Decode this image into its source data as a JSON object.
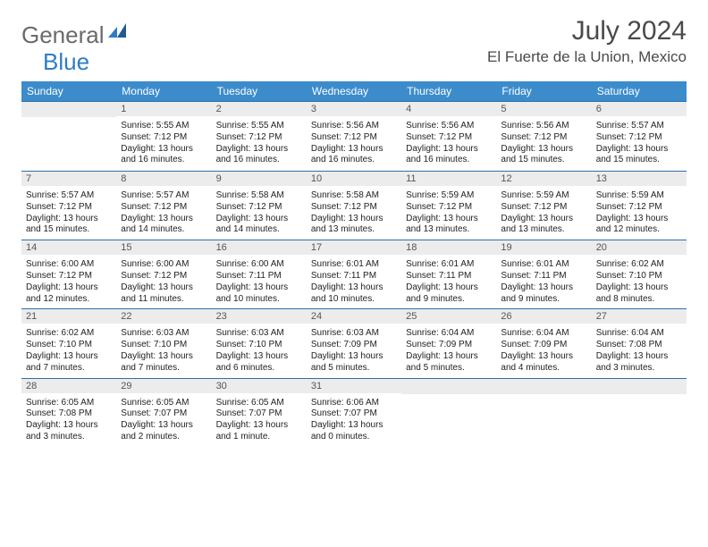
{
  "brand": {
    "part1": "General",
    "part2": "Blue"
  },
  "title": "July 2024",
  "location": "El Fuerte de la Union, Mexico",
  "colors": {
    "header_bg": "#3c8ccc",
    "header_text": "#ffffff",
    "border": "#2f6fa8",
    "daynum_bg": "#ececec",
    "daynum_text": "#555555",
    "body_text": "#222222",
    "brand_gray": "#6a6a6a",
    "brand_blue": "#2f7dc4"
  },
  "weekdays": [
    "Sunday",
    "Monday",
    "Tuesday",
    "Wednesday",
    "Thursday",
    "Friday",
    "Saturday"
  ],
  "weeks": [
    [
      {
        "day": "",
        "sunrise": "",
        "sunset": "",
        "daylight": ""
      },
      {
        "day": "1",
        "sunrise": "Sunrise: 5:55 AM",
        "sunset": "Sunset: 7:12 PM",
        "daylight": "Daylight: 13 hours and 16 minutes."
      },
      {
        "day": "2",
        "sunrise": "Sunrise: 5:55 AM",
        "sunset": "Sunset: 7:12 PM",
        "daylight": "Daylight: 13 hours and 16 minutes."
      },
      {
        "day": "3",
        "sunrise": "Sunrise: 5:56 AM",
        "sunset": "Sunset: 7:12 PM",
        "daylight": "Daylight: 13 hours and 16 minutes."
      },
      {
        "day": "4",
        "sunrise": "Sunrise: 5:56 AM",
        "sunset": "Sunset: 7:12 PM",
        "daylight": "Daylight: 13 hours and 16 minutes."
      },
      {
        "day": "5",
        "sunrise": "Sunrise: 5:56 AM",
        "sunset": "Sunset: 7:12 PM",
        "daylight": "Daylight: 13 hours and 15 minutes."
      },
      {
        "day": "6",
        "sunrise": "Sunrise: 5:57 AM",
        "sunset": "Sunset: 7:12 PM",
        "daylight": "Daylight: 13 hours and 15 minutes."
      }
    ],
    [
      {
        "day": "7",
        "sunrise": "Sunrise: 5:57 AM",
        "sunset": "Sunset: 7:12 PM",
        "daylight": "Daylight: 13 hours and 15 minutes."
      },
      {
        "day": "8",
        "sunrise": "Sunrise: 5:57 AM",
        "sunset": "Sunset: 7:12 PM",
        "daylight": "Daylight: 13 hours and 14 minutes."
      },
      {
        "day": "9",
        "sunrise": "Sunrise: 5:58 AM",
        "sunset": "Sunset: 7:12 PM",
        "daylight": "Daylight: 13 hours and 14 minutes."
      },
      {
        "day": "10",
        "sunrise": "Sunrise: 5:58 AM",
        "sunset": "Sunset: 7:12 PM",
        "daylight": "Daylight: 13 hours and 13 minutes."
      },
      {
        "day": "11",
        "sunrise": "Sunrise: 5:59 AM",
        "sunset": "Sunset: 7:12 PM",
        "daylight": "Daylight: 13 hours and 13 minutes."
      },
      {
        "day": "12",
        "sunrise": "Sunrise: 5:59 AM",
        "sunset": "Sunset: 7:12 PM",
        "daylight": "Daylight: 13 hours and 13 minutes."
      },
      {
        "day": "13",
        "sunrise": "Sunrise: 5:59 AM",
        "sunset": "Sunset: 7:12 PM",
        "daylight": "Daylight: 13 hours and 12 minutes."
      }
    ],
    [
      {
        "day": "14",
        "sunrise": "Sunrise: 6:00 AM",
        "sunset": "Sunset: 7:12 PM",
        "daylight": "Daylight: 13 hours and 12 minutes."
      },
      {
        "day": "15",
        "sunrise": "Sunrise: 6:00 AM",
        "sunset": "Sunset: 7:12 PM",
        "daylight": "Daylight: 13 hours and 11 minutes."
      },
      {
        "day": "16",
        "sunrise": "Sunrise: 6:00 AM",
        "sunset": "Sunset: 7:11 PM",
        "daylight": "Daylight: 13 hours and 10 minutes."
      },
      {
        "day": "17",
        "sunrise": "Sunrise: 6:01 AM",
        "sunset": "Sunset: 7:11 PM",
        "daylight": "Daylight: 13 hours and 10 minutes."
      },
      {
        "day": "18",
        "sunrise": "Sunrise: 6:01 AM",
        "sunset": "Sunset: 7:11 PM",
        "daylight": "Daylight: 13 hours and 9 minutes."
      },
      {
        "day": "19",
        "sunrise": "Sunrise: 6:01 AM",
        "sunset": "Sunset: 7:11 PM",
        "daylight": "Daylight: 13 hours and 9 minutes."
      },
      {
        "day": "20",
        "sunrise": "Sunrise: 6:02 AM",
        "sunset": "Sunset: 7:10 PM",
        "daylight": "Daylight: 13 hours and 8 minutes."
      }
    ],
    [
      {
        "day": "21",
        "sunrise": "Sunrise: 6:02 AM",
        "sunset": "Sunset: 7:10 PM",
        "daylight": "Daylight: 13 hours and 7 minutes."
      },
      {
        "day": "22",
        "sunrise": "Sunrise: 6:03 AM",
        "sunset": "Sunset: 7:10 PM",
        "daylight": "Daylight: 13 hours and 7 minutes."
      },
      {
        "day": "23",
        "sunrise": "Sunrise: 6:03 AM",
        "sunset": "Sunset: 7:10 PM",
        "daylight": "Daylight: 13 hours and 6 minutes."
      },
      {
        "day": "24",
        "sunrise": "Sunrise: 6:03 AM",
        "sunset": "Sunset: 7:09 PM",
        "daylight": "Daylight: 13 hours and 5 minutes."
      },
      {
        "day": "25",
        "sunrise": "Sunrise: 6:04 AM",
        "sunset": "Sunset: 7:09 PM",
        "daylight": "Daylight: 13 hours and 5 minutes."
      },
      {
        "day": "26",
        "sunrise": "Sunrise: 6:04 AM",
        "sunset": "Sunset: 7:09 PM",
        "daylight": "Daylight: 13 hours and 4 minutes."
      },
      {
        "day": "27",
        "sunrise": "Sunrise: 6:04 AM",
        "sunset": "Sunset: 7:08 PM",
        "daylight": "Daylight: 13 hours and 3 minutes."
      }
    ],
    [
      {
        "day": "28",
        "sunrise": "Sunrise: 6:05 AM",
        "sunset": "Sunset: 7:08 PM",
        "daylight": "Daylight: 13 hours and 3 minutes."
      },
      {
        "day": "29",
        "sunrise": "Sunrise: 6:05 AM",
        "sunset": "Sunset: 7:07 PM",
        "daylight": "Daylight: 13 hours and 2 minutes."
      },
      {
        "day": "30",
        "sunrise": "Sunrise: 6:05 AM",
        "sunset": "Sunset: 7:07 PM",
        "daylight": "Daylight: 13 hours and 1 minute."
      },
      {
        "day": "31",
        "sunrise": "Sunrise: 6:06 AM",
        "sunset": "Sunset: 7:07 PM",
        "daylight": "Daylight: 13 hours and 0 minutes."
      },
      {
        "day": "",
        "sunrise": "",
        "sunset": "",
        "daylight": ""
      },
      {
        "day": "",
        "sunrise": "",
        "sunset": "",
        "daylight": ""
      },
      {
        "day": "",
        "sunrise": "",
        "sunset": "",
        "daylight": ""
      }
    ]
  ]
}
